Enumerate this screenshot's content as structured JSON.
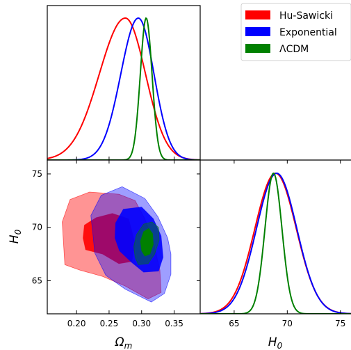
{
  "chart_data": {
    "type": "corner-plot",
    "legend": {
      "placement": "top-right",
      "entries": [
        {
          "name": "Hu-Sawicki",
          "color": "#ff0000"
        },
        {
          "name": "Exponential",
          "color": "#0000ff"
        },
        {
          "name": "ΛCDM",
          "color": "#008000"
        }
      ]
    },
    "parameters": [
      {
        "name": "Omega_m",
        "label": "Ω",
        "sub": "m",
        "range": [
          0.155,
          0.39
        ],
        "ticks": [
          0.2,
          0.25,
          0.3,
          0.35
        ],
        "tick_labels": [
          "0.20",
          "0.25",
          "0.30",
          "0.35"
        ]
      },
      {
        "name": "H0",
        "label": "H",
        "sub": "0",
        "range": [
          61.9,
          76.3
        ],
        "ticks": [
          65,
          70,
          75
        ],
        "tick_labels": [
          "65",
          "70",
          "75"
        ]
      }
    ],
    "marginal_omega": [
      {
        "series": "Hu-Sawicki",
        "color": "#ff0000",
        "peak": 0.275,
        "sigma_left": 0.04,
        "sigma_right": 0.031
      },
      {
        "series": "Exponential",
        "color": "#0000ff",
        "peak": 0.295,
        "sigma_left": 0.027,
        "sigma_right": 0.024
      },
      {
        "series": "ΛCDM",
        "color": "#008000",
        "peak": 0.307,
        "sigma_left": 0.009,
        "sigma_right": 0.009
      }
    ],
    "marginal_h0": [
      {
        "series": "Hu-Sawicki",
        "color": "#ff0000",
        "peak": 68.9,
        "sigma": 1.95
      },
      {
        "series": "Exponential",
        "color": "#0000ff",
        "peak": 69.0,
        "sigma": 1.9
      },
      {
        "series": "ΛCDM",
        "color": "#008000",
        "peak": 68.7,
        "sigma": 0.8
      }
    ],
    "contours": [
      {
        "series": "Hu-Sawicki",
        "color": "#ff0000",
        "level": "95%",
        "opacity": 0.42,
        "points": [
          [
            0.18,
            68.5
          ],
          [
            0.182,
            66.5
          ],
          [
            0.205,
            66.0
          ],
          [
            0.24,
            65.4
          ],
          [
            0.275,
            64.5
          ],
          [
            0.31,
            63.3
          ],
          [
            0.33,
            63.9
          ],
          [
            0.328,
            66.0
          ],
          [
            0.318,
            68.6
          ],
          [
            0.305,
            70.8
          ],
          [
            0.29,
            72.5
          ],
          [
            0.265,
            73.1
          ],
          [
            0.22,
            73.3
          ],
          [
            0.19,
            72.6
          ],
          [
            0.178,
            70.5
          ]
        ]
      },
      {
        "series": "Hu-Sawicki",
        "color": "#ff0000",
        "level": "68%",
        "opacity": 0.9,
        "points": [
          [
            0.21,
            69.0
          ],
          [
            0.214,
            67.9
          ],
          [
            0.24,
            67.5
          ],
          [
            0.265,
            66.6
          ],
          [
            0.285,
            66.8
          ],
          [
            0.29,
            68.5
          ],
          [
            0.28,
            70.8
          ],
          [
            0.255,
            71.3
          ],
          [
            0.23,
            70.9
          ],
          [
            0.212,
            70.2
          ]
        ]
      },
      {
        "series": "Exponential",
        "color": "#0000ff",
        "level": "95%",
        "opacity": 0.38,
        "points": [
          [
            0.222,
            71.1
          ],
          [
            0.238,
            73.0
          ],
          [
            0.27,
            73.8
          ],
          [
            0.305,
            72.7
          ],
          [
            0.325,
            71.0
          ],
          [
            0.34,
            69.0
          ],
          [
            0.345,
            67.5
          ],
          [
            0.345,
            65.6
          ],
          [
            0.335,
            63.8
          ],
          [
            0.315,
            63.0
          ],
          [
            0.275,
            64.2
          ],
          [
            0.245,
            65.5
          ],
          [
            0.228,
            67.6
          ],
          [
            0.225,
            69.5
          ]
        ]
      },
      {
        "series": "Exponential",
        "color": "#0000ff",
        "level": "68%",
        "opacity": 0.9,
        "points": [
          [
            0.26,
            70.4
          ],
          [
            0.272,
            71.7
          ],
          [
            0.3,
            71.9
          ],
          [
            0.318,
            70.8
          ],
          [
            0.33,
            69.2
          ],
          [
            0.333,
            67.2
          ],
          [
            0.326,
            65.9
          ],
          [
            0.303,
            65.8
          ],
          [
            0.285,
            66.7
          ],
          [
            0.266,
            67.8
          ],
          [
            0.259,
            69.0
          ]
        ]
      },
      {
        "series": "ΛCDM",
        "color": "#008000",
        "level": "95%",
        "opacity": 0.42,
        "points": [
          [
            0.29,
            67.2
          ],
          [
            0.295,
            66.5
          ],
          [
            0.31,
            66.6
          ],
          [
            0.32,
            67.5
          ],
          [
            0.327,
            68.8
          ],
          [
            0.326,
            70.0
          ],
          [
            0.316,
            70.5
          ],
          [
            0.303,
            70.3
          ],
          [
            0.292,
            69.3
          ],
          [
            0.288,
            68.2
          ]
        ]
      },
      {
        "series": "ΛCDM",
        "color": "#008000",
        "level": "68%",
        "opacity": 1.0,
        "points": [
          [
            0.3,
            67.8
          ],
          [
            0.305,
            67.3
          ],
          [
            0.313,
            67.5
          ],
          [
            0.318,
            68.4
          ],
          [
            0.317,
            69.4
          ],
          [
            0.311,
            69.9
          ],
          [
            0.303,
            69.6
          ],
          [
            0.298,
            68.7
          ]
        ]
      }
    ]
  }
}
